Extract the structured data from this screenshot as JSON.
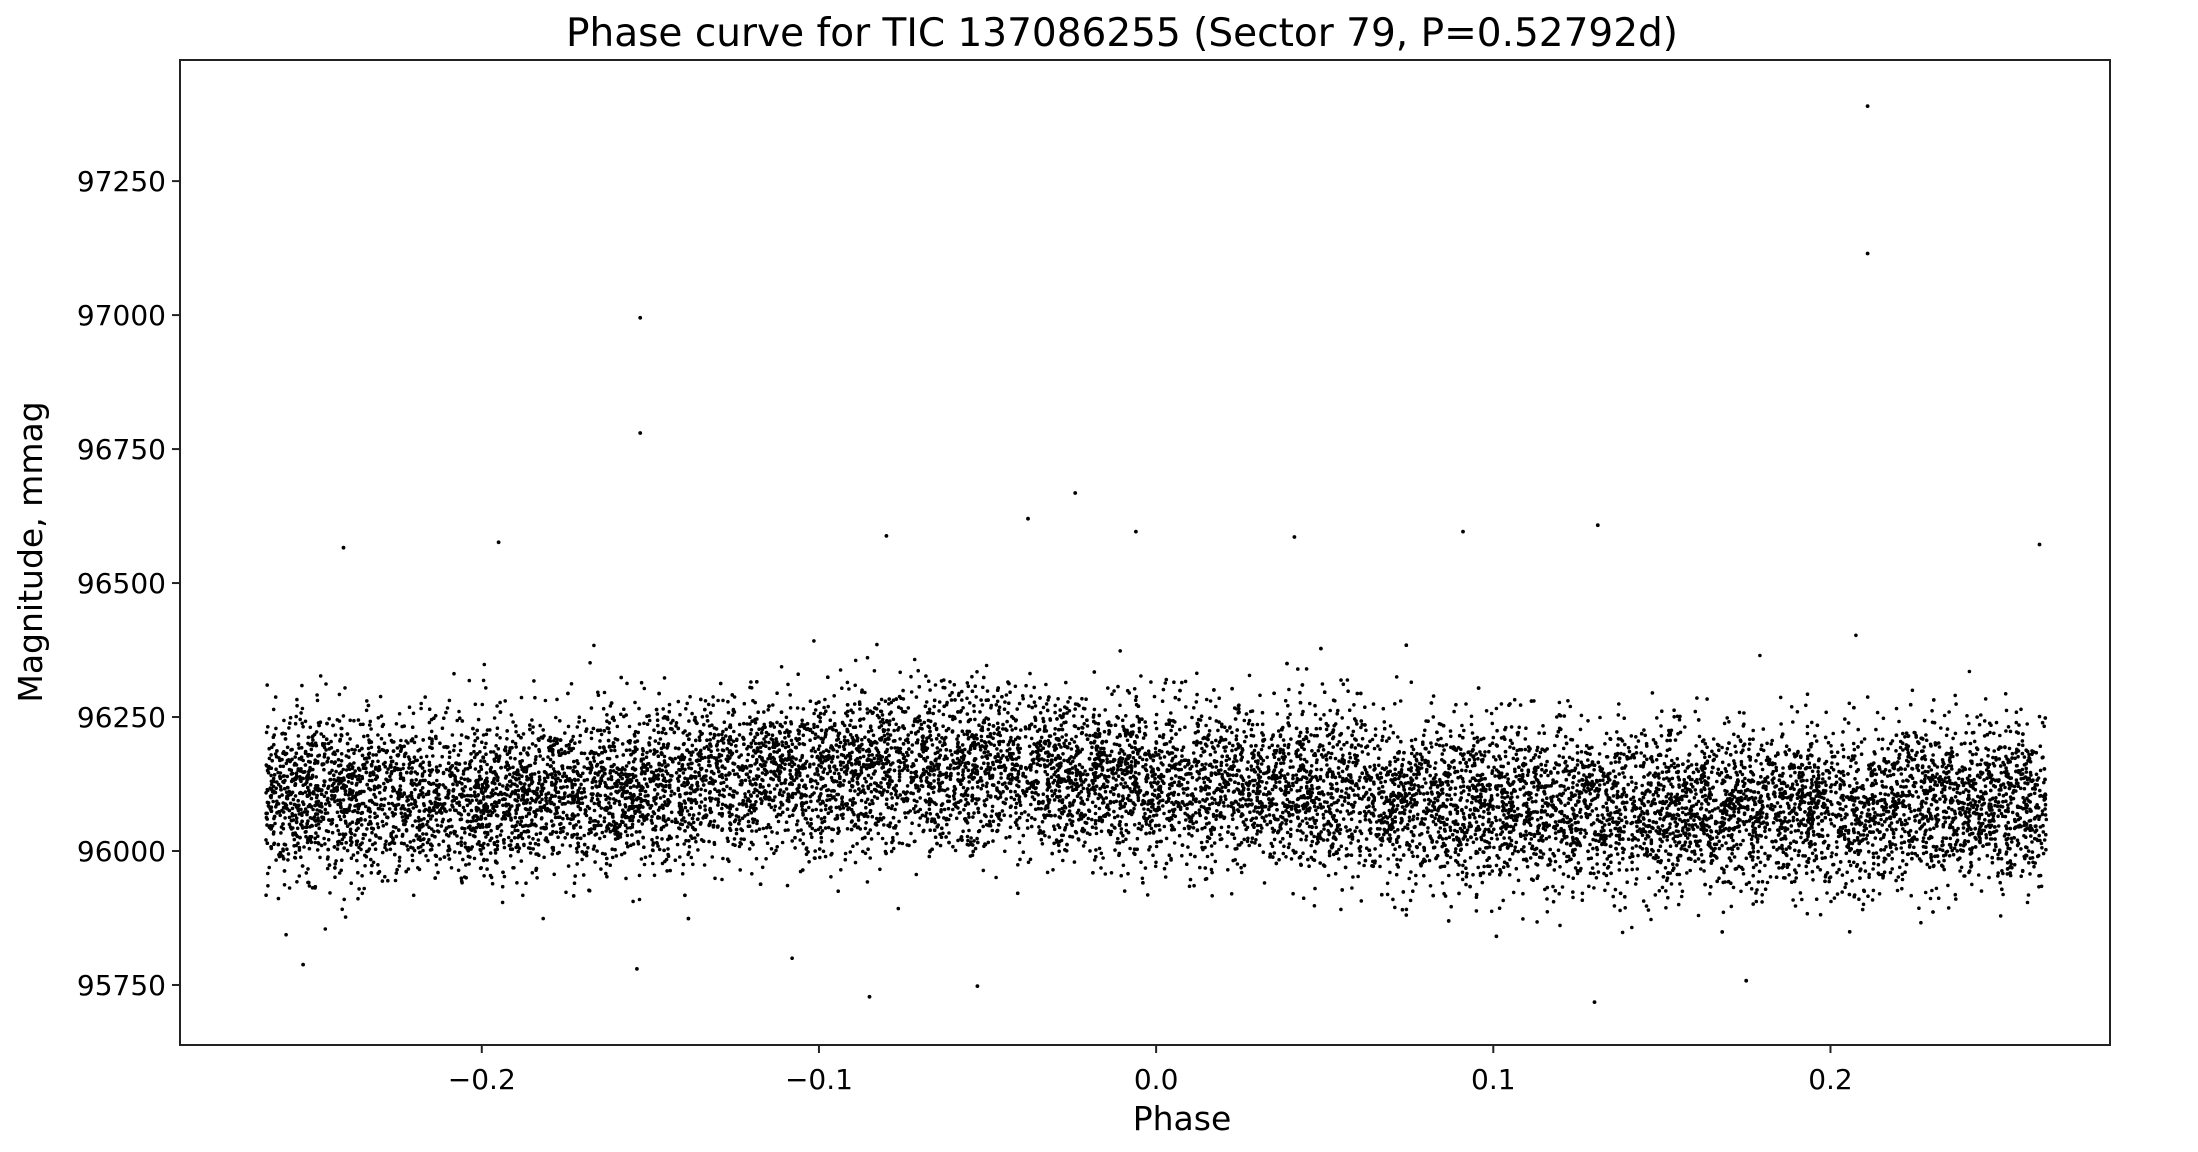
{
  "chart_data": {
    "type": "scatter",
    "title": "Phase curve for TIC 137086255 (Sector 79, P=0.52792d)",
    "xlabel": "Phase",
    "ylabel": "Magnitude, mmag",
    "xlim": [
      -0.2895,
      0.2829
    ],
    "ylim": [
      95638,
      97476
    ],
    "y_inverted": false,
    "grid": false,
    "marker_color": "#000000",
    "xticks": [
      "−0.2",
      "−0.1",
      "0.0",
      "0.1",
      "0.2"
    ],
    "xtick_values": [
      -0.2,
      -0.1,
      0.0,
      0.1,
      0.2
    ],
    "yticks": [
      "95750",
      "96000",
      "96250",
      "96500",
      "96750",
      "97000",
      "97250"
    ],
    "ytick_values": [
      95750,
      96000,
      96250,
      96500,
      96750,
      97000,
      97250
    ],
    "bulk": {
      "phase_range": [
        -0.264,
        0.264
      ],
      "trend": [
        {
          "phase": -0.26,
          "mag": 96105
        },
        {
          "phase": -0.2,
          "mag": 96100
        },
        {
          "phase": -0.1,
          "mag": 96145
        },
        {
          "phase": -0.05,
          "mag": 96150
        },
        {
          "phase": 0.0,
          "mag": 96130
        },
        {
          "phase": 0.1,
          "mag": 96090
        },
        {
          "phase": 0.15,
          "mag": 96075
        },
        {
          "phase": 0.2,
          "mag": 96080
        },
        {
          "phase": 0.26,
          "mag": 96090
        }
      ],
      "scatter_sd": 75
    },
    "outliers": [
      {
        "x": 0.211,
        "y": 97390
      },
      {
        "x": 0.211,
        "y": 97115
      },
      {
        "x": -0.153,
        "y": 96995
      },
      {
        "x": -0.153,
        "y": 96780
      },
      {
        "x": -0.024,
        "y": 96668
      },
      {
        "x": -0.038,
        "y": 96620
      },
      {
        "x": 0.131,
        "y": 96608
      },
      {
        "x": -0.006,
        "y": 96596
      },
      {
        "x": 0.091,
        "y": 96596
      },
      {
        "x": -0.195,
        "y": 96576
      },
      {
        "x": 0.262,
        "y": 96572
      },
      {
        "x": -0.08,
        "y": 96588
      },
      {
        "x": 0.041,
        "y": 96586
      },
      {
        "x": -0.241,
        "y": 96566
      },
      {
        "x": -0.085,
        "y": 95728
      },
      {
        "x": -0.053,
        "y": 95748
      },
      {
        "x": 0.13,
        "y": 95718
      },
      {
        "x": -0.154,
        "y": 95780
      },
      {
        "x": 0.175,
        "y": 95758
      },
      {
        "x": -0.253,
        "y": 95788
      }
    ]
  }
}
